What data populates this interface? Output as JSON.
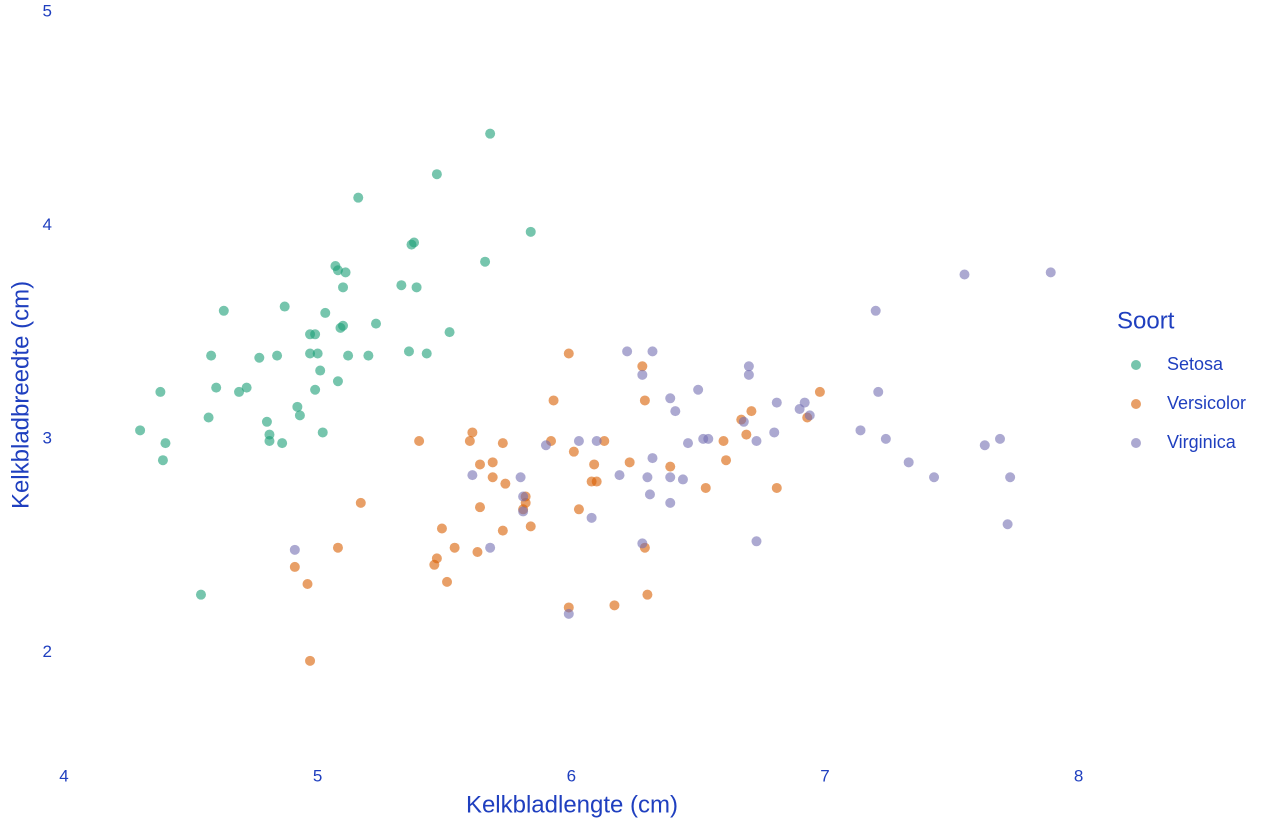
{
  "chart_data": {
    "type": "scatter",
    "xlabel": "Kelkbladlengte (cm)",
    "ylabel": "Kelkbladbreedte (cm)",
    "legend_title": "Soort",
    "legend": "right",
    "grid": false,
    "opacity": 0.6,
    "xlim": [
      4,
      8.1
    ],
    "ylim": [
      1.5,
      5
    ],
    "xticks": [
      4,
      5,
      6,
      7,
      8
    ],
    "yticks": [
      2,
      3,
      4,
      5
    ],
    "series": [
      {
        "name": "Setosa",
        "color": "#1b9e77",
        "x": [
          4.3,
          4.38,
          4.4,
          4.39,
          4.54,
          4.57,
          4.58,
          4.6,
          4.63,
          4.69,
          4.72,
          4.77,
          4.8,
          4.81,
          4.81,
          4.84,
          4.86,
          4.87,
          4.92,
          4.93,
          4.97,
          4.99,
          4.97,
          5.0,
          4.99,
          5.01,
          5.02,
          5.03,
          5.07,
          5.08,
          5.08,
          5.09,
          5.1,
          5.1,
          5.11,
          5.12,
          5.16,
          5.2,
          5.23,
          5.33,
          5.37,
          5.38,
          5.36,
          5.39,
          5.43,
          5.47,
          5.52,
          5.66,
          5.68,
          5.84
        ],
        "values": [
          3.04,
          3.22,
          2.98,
          2.9,
          2.27,
          3.1,
          3.39,
          3.24,
          3.6,
          3.22,
          3.24,
          3.38,
          3.08,
          3.02,
          2.99,
          3.39,
          2.98,
          3.62,
          3.15,
          3.11,
          3.49,
          3.49,
          3.4,
          3.4,
          3.23,
          3.32,
          3.03,
          3.59,
          3.81,
          3.79,
          3.27,
          3.52,
          3.53,
          3.71,
          3.78,
          3.39,
          4.13,
          3.39,
          3.54,
          3.72,
          3.91,
          3.92,
          3.41,
          3.71,
          3.4,
          4.24,
          3.5,
          3.83,
          4.43,
          3.97
        ]
      },
      {
        "name": "Versicolor",
        "color": "#d95f02",
        "x": [
          5.99,
          6.28,
          5.93,
          6.29,
          6.98,
          6.71,
          6.67,
          6.93,
          6.69,
          5.61,
          5.4,
          5.6,
          5.73,
          5.92,
          6.13,
          6.6,
          6.01,
          6.23,
          6.61,
          5.64,
          5.69,
          6.09,
          6.39,
          5.69,
          5.74,
          6.08,
          6.1,
          6.53,
          6.81,
          5.82,
          5.82,
          5.17,
          5.64,
          6.03,
          5.81,
          5.49,
          5.73,
          5.84,
          5.08,
          5.54,
          5.63,
          6.29,
          5.47,
          5.46,
          4.91,
          4.96,
          5.51,
          6.3,
          5.99,
          6.17,
          4.97
        ],
        "values": [
          3.4,
          3.34,
          3.18,
          3.18,
          3.22,
          3.13,
          3.09,
          3.1,
          3.02,
          3.03,
          2.99,
          2.99,
          2.98,
          2.99,
          2.99,
          2.99,
          2.94,
          2.89,
          2.9,
          2.88,
          2.89,
          2.88,
          2.87,
          2.82,
          2.79,
          2.8,
          2.8,
          2.77,
          2.77,
          2.73,
          2.7,
          2.7,
          2.68,
          2.67,
          2.67,
          2.58,
          2.57,
          2.59,
          2.49,
          2.49,
          2.47,
          2.49,
          2.44,
          2.41,
          2.4,
          2.32,
          2.33,
          2.27,
          2.21,
          2.22,
          1.96
        ]
      },
      {
        "name": "Virginica",
        "color": "#7570b3",
        "x": [
          7.89,
          7.55,
          7.2,
          6.22,
          6.32,
          6.7,
          6.7,
          6.28,
          6.5,
          7.21,
          6.39,
          6.81,
          6.92,
          6.41,
          6.9,
          6.94,
          6.68,
          7.14,
          6.8,
          7.24,
          7.69,
          6.54,
          6.52,
          6.46,
          6.73,
          6.03,
          6.1,
          7.63,
          5.9,
          6.32,
          7.33,
          5.61,
          5.8,
          6.19,
          6.3,
          6.39,
          6.44,
          7.43,
          7.73,
          6.31,
          5.81,
          6.39,
          5.81,
          6.08,
          7.72,
          6.28,
          6.73,
          4.91,
          5.68,
          5.99
        ],
        "values": [
          3.78,
          3.77,
          3.6,
          3.41,
          3.41,
          3.34,
          3.3,
          3.3,
          3.23,
          3.22,
          3.19,
          3.17,
          3.17,
          3.13,
          3.14,
          3.11,
          3.08,
          3.04,
          3.03,
          3.0,
          3.0,
          3.0,
          3.0,
          2.98,
          2.99,
          2.99,
          2.99,
          2.97,
          2.97,
          2.91,
          2.89,
          2.83,
          2.82,
          2.83,
          2.82,
          2.82,
          2.81,
          2.82,
          2.82,
          2.74,
          2.73,
          2.7,
          2.66,
          2.63,
          2.6,
          2.51,
          2.52,
          2.48,
          2.49,
          2.18
        ]
      }
    ]
  }
}
